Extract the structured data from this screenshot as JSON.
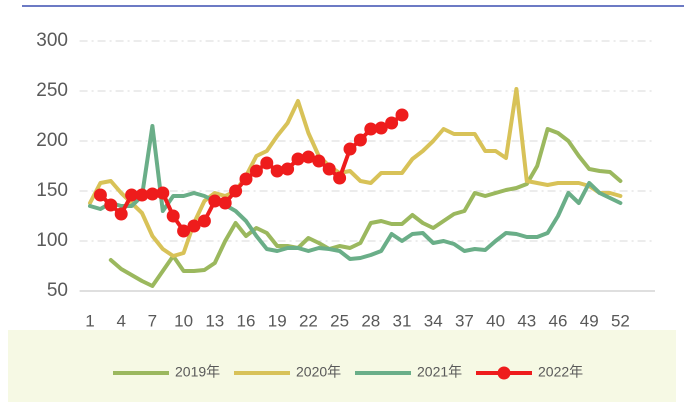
{
  "chart_data": {
    "type": "line",
    "x": [
      1,
      2,
      3,
      4,
      5,
      6,
      7,
      8,
      9,
      10,
      11,
      12,
      13,
      14,
      15,
      16,
      17,
      18,
      19,
      20,
      21,
      22,
      23,
      24,
      25,
      26,
      27,
      28,
      29,
      30,
      31,
      32,
      33,
      34,
      35,
      36,
      37,
      38,
      39,
      40,
      41,
      42,
      43,
      44,
      45,
      46,
      47,
      48,
      49,
      50,
      51,
      52,
      53
    ],
    "xlim": [
      0,
      54
    ],
    "xticks": [
      1,
      4,
      7,
      10,
      13,
      16,
      19,
      22,
      25,
      28,
      31,
      34,
      37,
      40,
      43,
      46,
      49,
      52
    ],
    "ylim": [
      50,
      300
    ],
    "yticks": [
      50,
      100,
      150,
      200,
      250,
      300
    ],
    "grid": true,
    "legend": "bottom",
    "series": [
      {
        "name": "2019年",
        "color": "#9bb85e",
        "values": [
          null,
          null,
          81,
          72,
          66,
          60,
          55,
          70,
          85,
          70,
          70,
          71,
          78,
          100,
          118,
          105,
          113,
          108,
          95,
          95,
          93,
          103,
          98,
          92,
          95,
          93,
          98,
          118,
          120,
          117,
          117,
          126,
          118,
          113,
          120,
          127,
          130,
          148,
          145,
          148,
          151,
          153,
          157,
          175,
          212,
          208,
          200,
          185,
          172,
          170,
          169,
          160,
          null
        ]
      },
      {
        "name": "2020年",
        "color": "#d8c258",
        "values": [
          138,
          158,
          160,
          148,
          138,
          128,
          105,
          92,
          85,
          88,
          118,
          140,
          148,
          145,
          150,
          165,
          185,
          190,
          205,
          218,
          240,
          208,
          185,
          175,
          168,
          170,
          160,
          158,
          168,
          168,
          168,
          182,
          190,
          200,
          212,
          207,
          207,
          207,
          190,
          190,
          183,
          252,
          160,
          158,
          156,
          158,
          158,
          158,
          155,
          148,
          148,
          145,
          null
        ]
      },
      {
        "name": "2021年",
        "color": "#6aae88",
        "values": [
          135,
          132,
          138,
          135,
          135,
          145,
          215,
          130,
          145,
          145,
          148,
          145,
          140,
          136,
          130,
          120,
          105,
          92,
          90,
          93,
          93,
          90,
          93,
          92,
          90,
          82,
          83,
          86,
          90,
          107,
          100,
          107,
          108,
          98,
          100,
          97,
          90,
          92,
          91,
          100,
          108,
          107,
          104,
          104,
          108,
          125,
          148,
          138,
          158,
          148,
          143,
          138,
          null
        ]
      },
      {
        "name": "2022年",
        "color": "#ee1c1c",
        "marker": "circle",
        "values": [
          null,
          146,
          136,
          127,
          146,
          146,
          147,
          148,
          125,
          110,
          115,
          120,
          140,
          138,
          150,
          162,
          170,
          178,
          170,
          172,
          182,
          184,
          180,
          172,
          163,
          192,
          201,
          212,
          213,
          218,
          226,
          null,
          null,
          null,
          null,
          null,
          null,
          null,
          null,
          null,
          null,
          null,
          null,
          null,
          null,
          null,
          null,
          null,
          null,
          null,
          null,
          null,
          null
        ]
      }
    ]
  }
}
